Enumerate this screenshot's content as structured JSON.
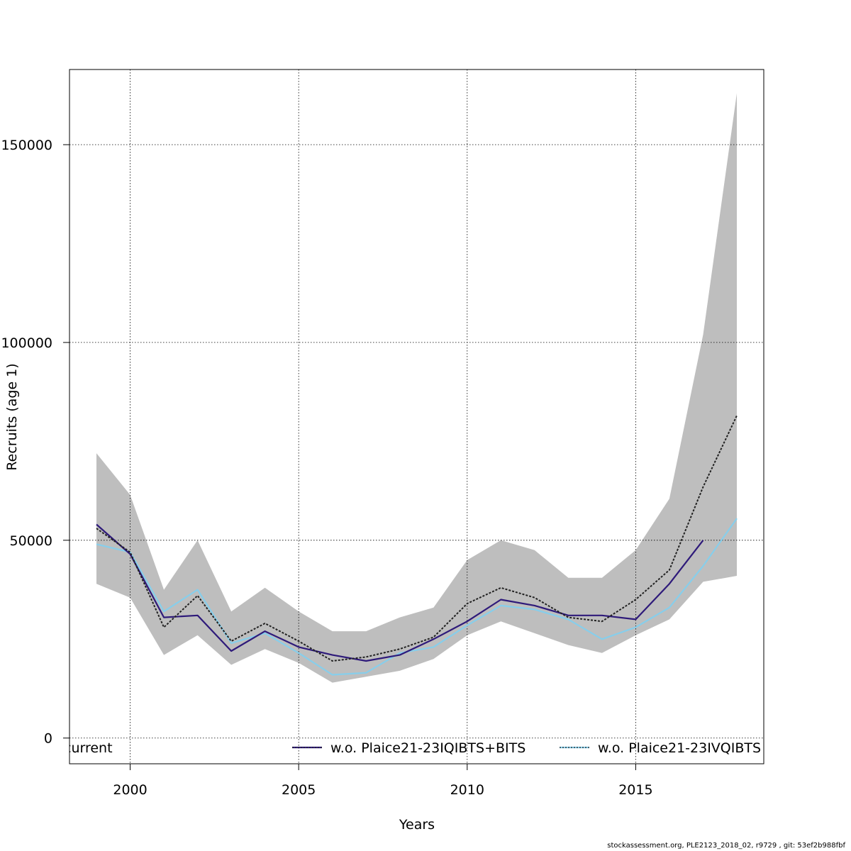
{
  "chart_data": {
    "type": "line",
    "title": "",
    "xlabel": "Years",
    "ylabel": "Recruits (age 1)",
    "xlim": [
      1998.2,
      2018.8
    ],
    "ylim": [
      -6500,
      169000
    ],
    "x_ticks": [
      2000,
      2005,
      2010,
      2015
    ],
    "y_ticks": [
      0,
      50000,
      100000,
      150000
    ],
    "x_tick_labels": [
      "2000",
      "2005",
      "2010",
      "2015"
    ],
    "y_tick_labels": [
      "0",
      "50000",
      "100000",
      "150000"
    ],
    "grid": true,
    "legend_position": "bottom",
    "x": [
      1999,
      2000,
      2001,
      2002,
      2003,
      2004,
      2005,
      2006,
      2007,
      2008,
      2009,
      2010,
      2011,
      2012,
      2013,
      2014,
      2015,
      2016,
      2017,
      2018
    ],
    "band": {
      "color": "#bebebe",
      "lower": [
        39000,
        35500,
        21000,
        26000,
        18500,
        22500,
        19000,
        14000,
        15500,
        17000,
        20000,
        26000,
        29500,
        26500,
        23500,
        21500,
        26000,
        30000,
        39500,
        41000
      ],
      "upper": [
        72000,
        61500,
        37500,
        50000,
        32000,
        38000,
        32000,
        27000,
        27000,
        30500,
        33000,
        45000,
        50000,
        47500,
        40500,
        40500,
        47500,
        60500,
        102000,
        163000
      ]
    },
    "series": [
      {
        "name": "current",
        "color": "#222222",
        "dashed": true,
        "values": [
          53000,
          47000,
          28000,
          36000,
          24500,
          29000,
          24500,
          19500,
          20500,
          22500,
          25500,
          34000,
          38000,
          35500,
          30500,
          29500,
          35000,
          42500,
          63500,
          81500
        ]
      },
      {
        "name": "w.o. Plaice21-23IQIBTS+BITS",
        "color": "#2e1a7a",
        "dashed": false,
        "values": [
          54000,
          46500,
          30500,
          31000,
          22000,
          27000,
          23000,
          21000,
          19500,
          21000,
          25000,
          29500,
          35000,
          33500,
          31000,
          31000,
          30000,
          39000,
          50000,
          null
        ]
      },
      {
        "name": "w.o. Plaice21-23IVQIBTS",
        "color": "#87ceeb",
        "dashed": false,
        "values": [
          49000,
          47000,
          32000,
          37500,
          24000,
          26500,
          21500,
          16000,
          16500,
          21500,
          23000,
          28500,
          33500,
          32500,
          30000,
          25000,
          28000,
          33000,
          43500,
          55500
        ]
      }
    ],
    "legend": [
      {
        "label": "current",
        "color": "#222222",
        "dashed": true
      },
      {
        "label": "w.o. Plaice21-23IQIBTS+BITS",
        "color": "#2e1a7a",
        "dashed": false
      },
      {
        "label": "w.o. Plaice21-23IVQIBTS",
        "color": "#87ceeb",
        "dashed": false
      }
    ]
  },
  "footer": "stockassessment.org, PLE2123_2018_02, r9729 , git: 53ef2b988fbf"
}
